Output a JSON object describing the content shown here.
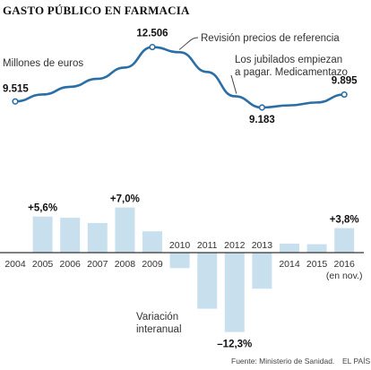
{
  "chart_data": {
    "type": "line",
    "title": "GASTO PÚBLICO EN FARMACIA",
    "years": [
      "2004",
      "2005",
      "2006",
      "2007",
      "2008",
      "2009",
      "2010",
      "2011",
      "2012",
      "2013",
      "2014",
      "2015",
      "2016"
    ],
    "year_note": "(en nov.)",
    "line": {
      "unit_label": "Millones de euros",
      "values": [
        9515,
        9900,
        10320,
        10760,
        11380,
        12506,
        12220,
        11140,
        9800,
        9183,
        9300,
        9460,
        9895
      ],
      "labeled_points": [
        {
          "year": "2004",
          "label": "9.515"
        },
        {
          "year": "2009",
          "label": "12.506"
        },
        {
          "year": "2013",
          "label": "9.183"
        },
        {
          "year": "2016",
          "label": "9.895"
        }
      ]
    },
    "annotations": {
      "revision": "Revisión precios de referencia",
      "jubilados_line1": "Los jubilados empiezan",
      "jubilados_line2": "a pagar. Medicamentazo"
    },
    "bars": {
      "label_line1": "Variación",
      "label_line2": "interanual",
      "values": [
        null,
        5.6,
        5.4,
        4.6,
        7.0,
        3.3,
        -2.4,
        -8.7,
        -12.3,
        -5.6,
        1.4,
        1.3,
        3.8
      ],
      "labeled": [
        {
          "year": "2005",
          "label": "+5,6%"
        },
        {
          "year": "2008",
          "label": "+7,0%"
        },
        {
          "year": "2012",
          "label": "–12,3%"
        },
        {
          "year": "2016",
          "label": "+3,8%"
        }
      ]
    },
    "source": "Fuente: Ministerio de Sanidad.",
    "publisher": "EL PAÍS",
    "colors": {
      "line": "#2a6ea5",
      "bar": "#c8dfee",
      "point_fill": "#ffffff",
      "axis": "#333333"
    }
  }
}
